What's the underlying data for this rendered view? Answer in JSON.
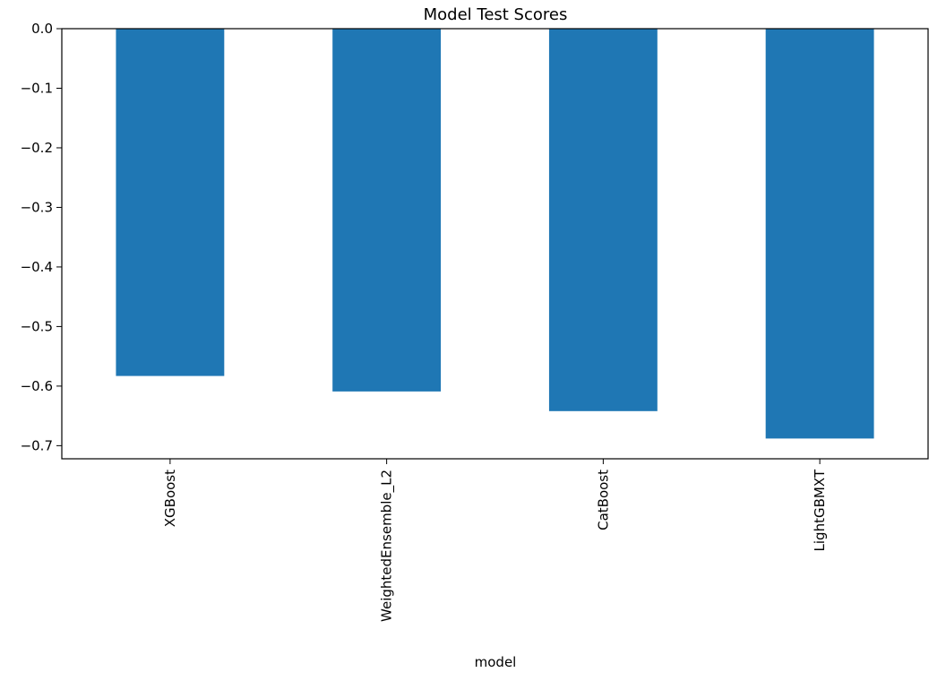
{
  "chart_data": {
    "type": "bar",
    "title": "Model Test Scores",
    "xlabel": "model",
    "ylabel": "",
    "categories": [
      "XGBoost",
      "WeightedEnsemble_L2",
      "CatBoost",
      "LightGBMXT"
    ],
    "values": [
      -0.583,
      -0.609,
      -0.642,
      -0.688
    ],
    "ylim": [
      -0.722,
      0.0
    ],
    "yticks": [
      0.0,
      -0.1,
      -0.2,
      -0.3,
      -0.4,
      -0.5,
      -0.6,
      -0.7
    ],
    "ytick_labels": [
      "0.0",
      "−0.1",
      "−0.2",
      "−0.3",
      "−0.4",
      "−0.5",
      "−0.6",
      "−0.7"
    ],
    "bar_color": "#1f77b4",
    "grid": false,
    "legend": "none"
  }
}
